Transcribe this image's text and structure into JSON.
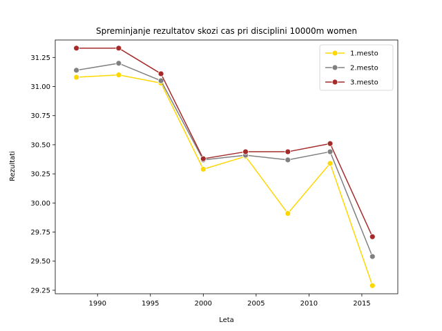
{
  "chart_data": {
    "type": "line",
    "title": "Spreminjanje rezultatov skozi cas pri disciplini 10000m women",
    "xlabel": "Leta",
    "ylabel": "Rezultati",
    "xlim": [
      1986.0,
      2018.4
    ],
    "ylim": [
      29.22,
      31.4
    ],
    "x_ticks": [
      1990,
      1995,
      2000,
      2005,
      2010,
      2015
    ],
    "y_ticks": [
      29.25,
      29.5,
      29.75,
      30.0,
      30.25,
      30.5,
      30.75,
      31.0,
      31.25
    ],
    "y_tick_labels": [
      "29.25",
      "29.50",
      "29.75",
      "30.00",
      "30.25",
      "30.50",
      "30.75",
      "31.00",
      "31.25"
    ],
    "x": [
      1988,
      1992,
      1996,
      2000,
      2004,
      2008,
      2012,
      2016
    ],
    "legend_position": "upper right",
    "series": [
      {
        "name": "1.mesto",
        "color": "#FFD700",
        "values": [
          31.08,
          31.1,
          31.03,
          30.29,
          30.4,
          29.91,
          30.34,
          29.29
        ]
      },
      {
        "name": "2.mesto",
        "color": "#808080",
        "values": [
          31.14,
          31.2,
          31.05,
          30.37,
          30.41,
          30.37,
          30.44,
          29.54
        ]
      },
      {
        "name": "3.mesto",
        "color": "#A52A2A",
        "values": [
          31.33,
          31.33,
          31.11,
          30.38,
          30.44,
          30.44,
          30.51,
          29.71
        ]
      }
    ]
  }
}
